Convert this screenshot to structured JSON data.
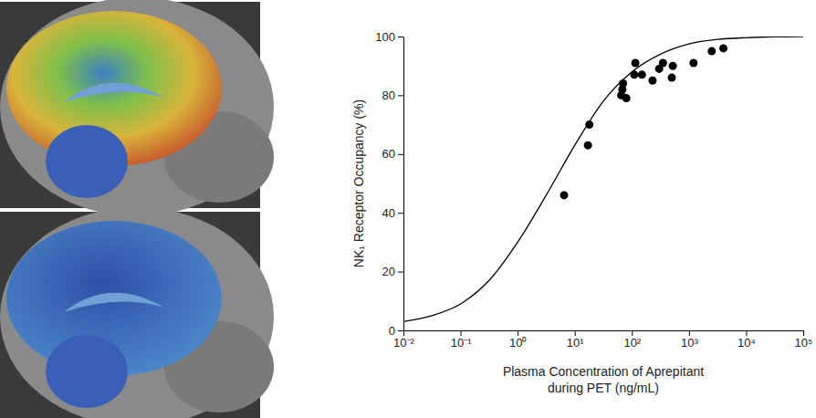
{
  "chart_data": {
    "type": "scatter",
    "log": "x",
    "xlabel": [
      "Plasma Concentration of Aprepitant",
      "during PET (ng/mL)"
    ],
    "ylabel": "NK₁ Receptor Occupancy (%)",
    "xlim": [
      0.01,
      100000
    ],
    "ylim": [
      0,
      100
    ],
    "xticks": [
      {
        "value": 0.01,
        "label": "10⁻²"
      },
      {
        "value": 0.1,
        "label": "10⁻¹"
      },
      {
        "value": 1,
        "label": "10⁰"
      },
      {
        "value": 10,
        "label": "10¹"
      },
      {
        "value": 100,
        "label": "10²"
      },
      {
        "value": 1000,
        "label": "10³"
      },
      {
        "value": 10000,
        "label": "10⁴"
      },
      {
        "value": 100000,
        "label": "10⁵"
      }
    ],
    "yticks": [
      0,
      20,
      40,
      60,
      80,
      100
    ],
    "series": [
      {
        "type": "scatter",
        "color": "#000000",
        "marker": "circle",
        "x": [
          6.5,
          17,
          18,
          65,
          68,
          70,
          80,
          110,
          115,
          150,
          230,
          300,
          350,
          500,
          520,
          1200,
          2500,
          4000
        ],
        "values": [
          46,
          63,
          70,
          80,
          82,
          84,
          79,
          87,
          91,
          87,
          85,
          89,
          91,
          86,
          90,
          91,
          95,
          96
        ]
      },
      {
        "type": "line",
        "color": "#000000",
        "line_style": "solid",
        "x": [
          0.01,
          0.0316,
          0.1,
          0.316,
          1,
          3.16,
          10,
          31.6,
          100,
          316,
          1000,
          3162,
          10000,
          31623,
          100000
        ],
        "values": [
          3,
          5,
          9,
          17,
          30,
          46,
          63,
          78,
          88,
          94,
          97.5,
          99,
          99.6,
          99.9,
          100
        ]
      }
    ]
  }
}
